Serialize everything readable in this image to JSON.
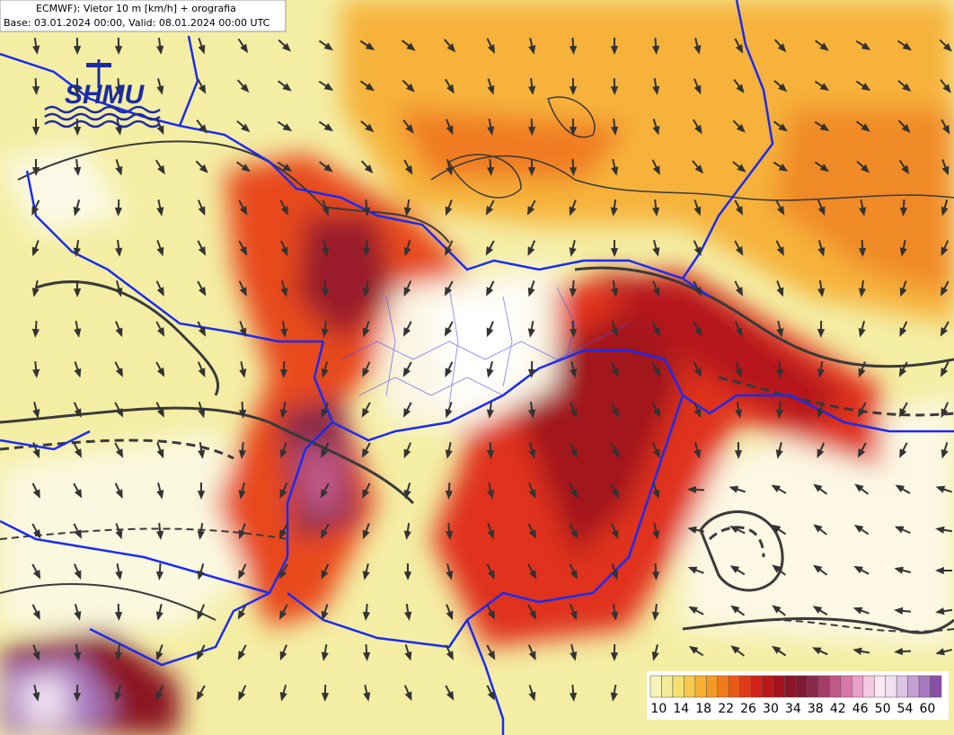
{
  "header": {
    "line1": "ECMWF): Vietor 10 m [km/h] + orografia",
    "line2": "Base: 03.01.2024 00:00, Valid: 08.01.2024 00:00 UTC"
  },
  "logo": {
    "text": "SHMU"
  },
  "legend": {
    "labels": [
      10,
      14,
      18,
      22,
      26,
      30,
      34,
      38,
      42,
      46,
      50,
      54,
      60
    ],
    "colors": [
      "#f7f3b8",
      "#f3ec98",
      "#f4e070",
      "#f6c94c",
      "#f5b032",
      "#f39a26",
      "#ef7a1e",
      "#e95a1a",
      "#e23a18",
      "#d22318",
      "#bd1618",
      "#a3121c",
      "#8c1424",
      "#7e1a34",
      "#8a2a4a",
      "#a43e68",
      "#c05888",
      "#d878a8",
      "#eaa0c8",
      "#f4c8e0",
      "#fbe8f2",
      "#f0e0f0",
      "#dcc4e4",
      "#c4a0d4",
      "#a878c0",
      "#8a50a8"
    ]
  }
}
